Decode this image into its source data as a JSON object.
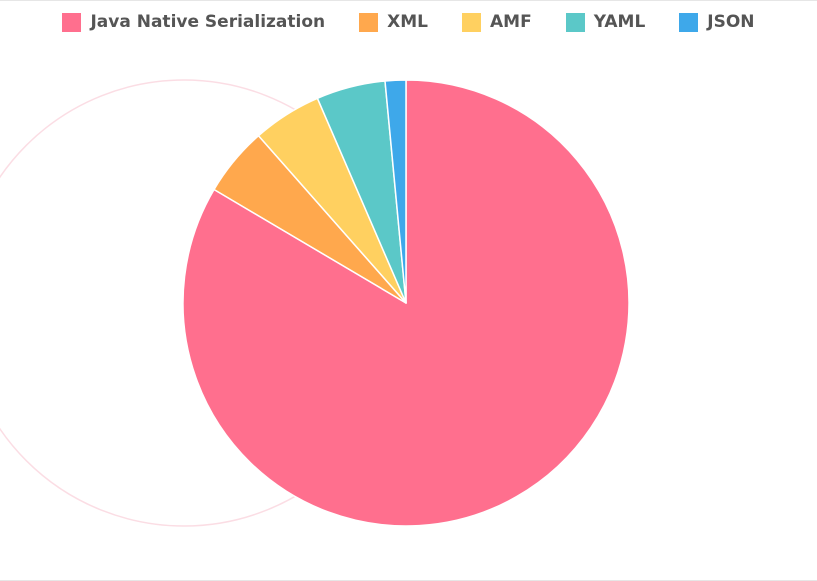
{
  "chart_data": {
    "type": "pie",
    "title": "",
    "categories": [
      "Java Native Serialization",
      "XML",
      "AMF",
      "YAML",
      "JSON"
    ],
    "values": [
      83.5,
      5.0,
      5.0,
      5.0,
      1.5
    ],
    "colors": [
      "#ff6f8e",
      "#ffa84d",
      "#ffd060",
      "#5bc8c8",
      "#3ea8ea"
    ],
    "legend_position": "top",
    "ghost_ring_color": "#fbdde4"
  }
}
